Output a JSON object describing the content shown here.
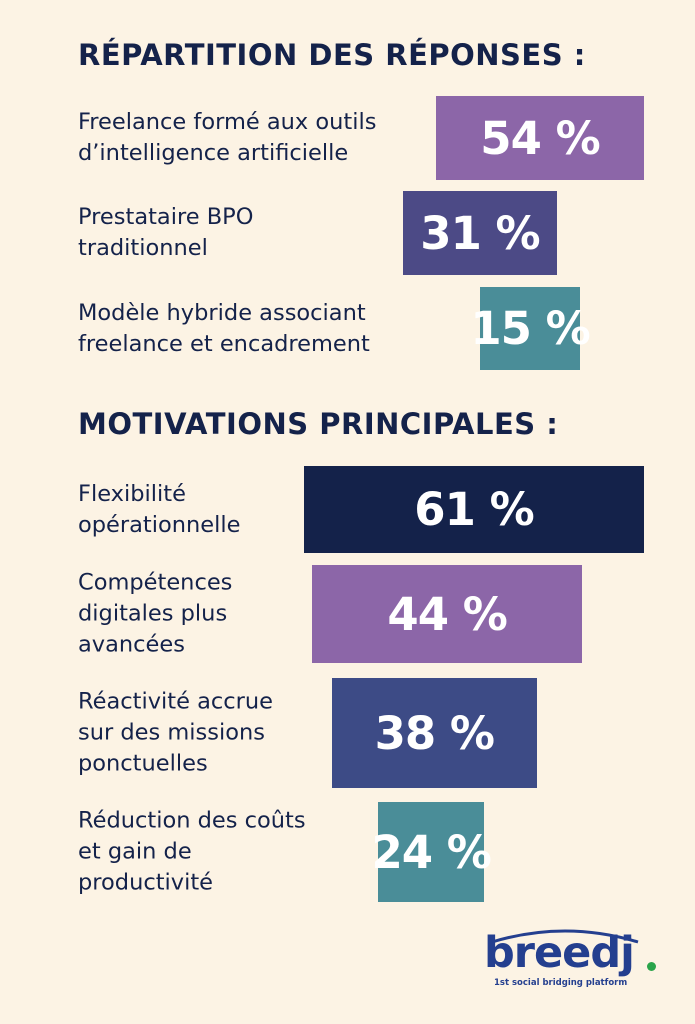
{
  "chart_data": [
    {
      "type": "bar",
      "orientation": "horizontal",
      "title": "RÉPARTITION DES RÉPONSES :",
      "categories": [
        "Freelance formé aux outils\nd’intelligence artificielle",
        "Prestataire BPO\ntraditionnel",
        "Modèle hybride associant\nfreelance et encadrement"
      ],
      "values": [
        54,
        31,
        15
      ],
      "value_labels": [
        "54 %",
        "31 %",
        "15 %"
      ],
      "colors": [
        "#8c66a8",
        "#4c4a86",
        "#4a8d98"
      ],
      "grid": false,
      "legend": "none"
    },
    {
      "type": "bar",
      "orientation": "horizontal",
      "title": "MOTIVATIONS PRINCIPALES :",
      "categories": [
        "Flexibilité\nopérationnelle",
        "Compétences\ndigitales plus\navancées",
        "Réactivité accrue\nsur des missions\nponctuelles",
        "Réduction des coûts\net gain de\nproductivité"
      ],
      "values": [
        61,
        44,
        38,
        24
      ],
      "value_labels": [
        "61 %",
        "44 %",
        "38 %",
        "24 %"
      ],
      "colors": [
        "#14224a",
        "#8c66a8",
        "#3d4b86",
        "#4a8d98"
      ],
      "grid": false,
      "legend": "none"
    }
  ],
  "logo": {
    "wordmark": "breedj",
    "tagline": "1st social bridging platform",
    "colors": {
      "text": "#243f8f",
      "dot": "#2aa44a"
    }
  }
}
